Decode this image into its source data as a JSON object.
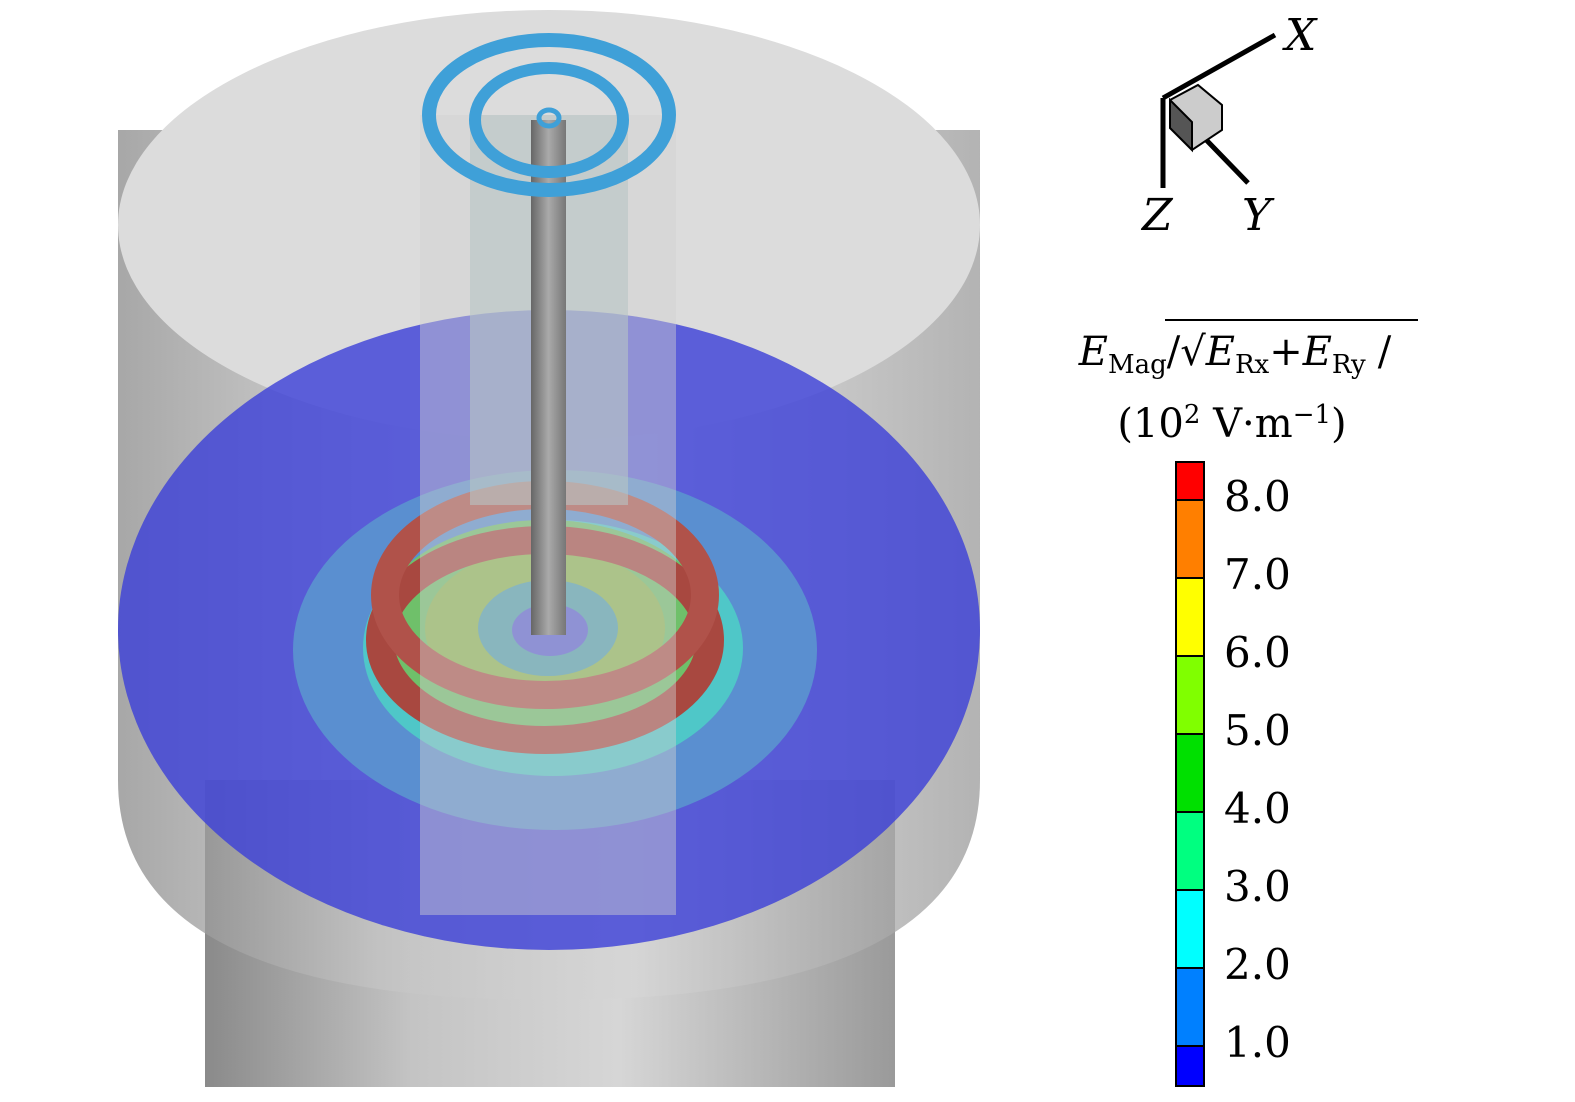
{
  "axes_triad": {
    "x_label": "X",
    "y_label": "Y",
    "z_label": "Z"
  },
  "colorbar": {
    "title": {
      "e1": "E",
      "sub1": "Mag",
      "slash": "/",
      "e2": "E",
      "sub2": "Rx",
      "plus": "+",
      "e3": "E",
      "sub3": "Ry",
      "slash2": "/",
      "open": "(10",
      "exp": "2",
      "unit": " V·m",
      "uexp": "−1",
      "close": ")"
    },
    "ticks": [
      "8.0",
      "7.0",
      "6.0",
      "5.0",
      "4.0",
      "3.0",
      "2.0",
      "1.0"
    ]
  }
}
